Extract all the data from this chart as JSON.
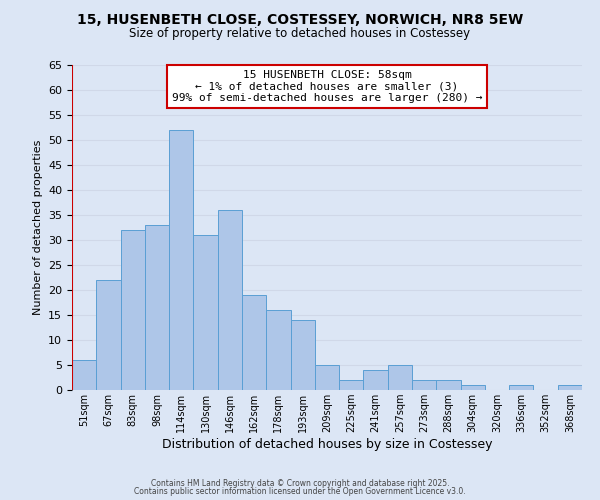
{
  "title_line1": "15, HUSENBETH CLOSE, COSTESSEY, NORWICH, NR8 5EW",
  "title_line2": "Size of property relative to detached houses in Costessey",
  "xlabel": "Distribution of detached houses by size in Costessey",
  "ylabel": "Number of detached properties",
  "bins": [
    "51sqm",
    "67sqm",
    "83sqm",
    "98sqm",
    "114sqm",
    "130sqm",
    "146sqm",
    "162sqm",
    "178sqm",
    "193sqm",
    "209sqm",
    "225sqm",
    "241sqm",
    "257sqm",
    "273sqm",
    "288sqm",
    "304sqm",
    "320sqm",
    "336sqm",
    "352sqm",
    "368sqm"
  ],
  "values": [
    6,
    22,
    32,
    33,
    52,
    31,
    36,
    19,
    16,
    14,
    5,
    2,
    4,
    5,
    2,
    2,
    1,
    0,
    1,
    0,
    1
  ],
  "bar_color": "#aec6e8",
  "bar_edge_color": "#5a9fd4",
  "grid_color": "#d0d8e8",
  "bg_color": "#dce6f5",
  "annotation_title": "15 HUSENBETH CLOSE: 58sqm",
  "annotation_line2": "← 1% of detached houses are smaller (3)",
  "annotation_line3": "99% of semi-detached houses are larger (280) →",
  "annotation_box_color": "#ffffff",
  "annotation_border_color": "#cc0000",
  "red_line_color": "#cc0000",
  "ylim": [
    0,
    65
  ],
  "yticks": [
    0,
    5,
    10,
    15,
    20,
    25,
    30,
    35,
    40,
    45,
    50,
    55,
    60,
    65
  ],
  "footer_line1": "Contains HM Land Registry data © Crown copyright and database right 2025.",
  "footer_line2": "Contains public sector information licensed under the Open Government Licence v3.0."
}
